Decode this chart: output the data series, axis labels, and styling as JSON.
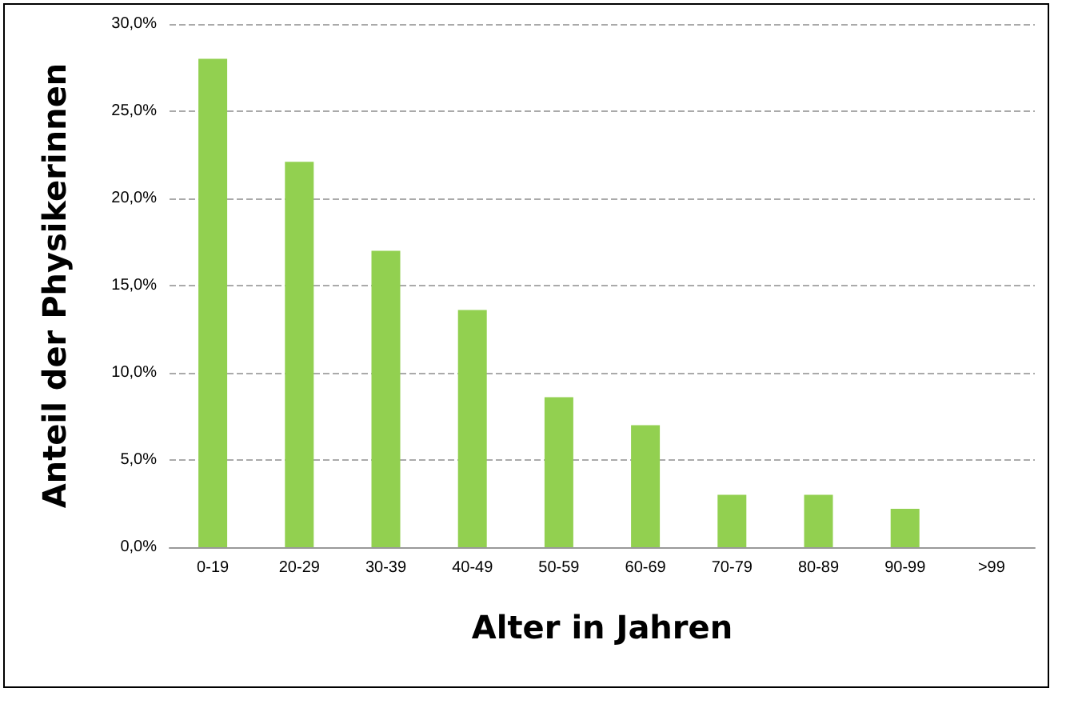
{
  "chart_data": {
    "type": "bar",
    "xlabel": "Alter in Jahren",
    "ylabel": "Anteil der Physikerinnen",
    "categories": [
      "0-19",
      "20-29",
      "30-39",
      "40-49",
      "50-59",
      "60-69",
      "70-79",
      "80-89",
      "90-99",
      ">99"
    ],
    "values": [
      28.0,
      22.1,
      17.0,
      13.6,
      8.6,
      7.0,
      3.0,
      3.0,
      2.2,
      0
    ],
    "color": "#92d050",
    "ylim": [
      0,
      30
    ],
    "yticks": [
      {
        "value": 0,
        "label": "0,0%"
      },
      {
        "value": 5,
        "label": "5,0%"
      },
      {
        "value": 10,
        "label": "10,0%"
      },
      {
        "value": 15,
        "label": "15,0%"
      },
      {
        "value": 20,
        "label": "20,0%"
      },
      {
        "value": 25,
        "label": "25,0%"
      },
      {
        "value": 30,
        "label": "30,0%"
      }
    ],
    "grid": "y"
  }
}
